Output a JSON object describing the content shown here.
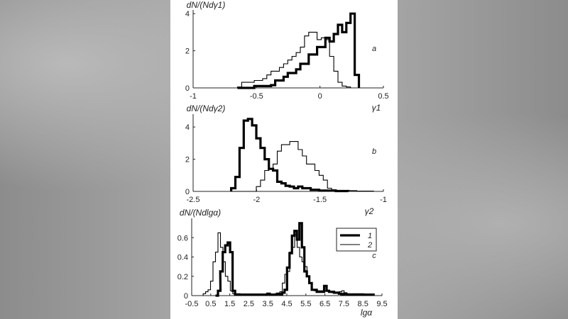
{
  "chart_data": [
    {
      "type": "histogram",
      "panel_label": "a",
      "ylabel": "dN/(Ndγ1)",
      "xlabel": "γ1",
      "xlim": [
        -1,
        0.5
      ],
      "ylim": [
        0,
        4.2
      ],
      "x_ticks": [
        "-1",
        "-0.5",
        "0",
        "0.5"
      ],
      "y_ticks": [
        "0",
        "2",
        "4"
      ],
      "bin_width": 0.033,
      "bin_start": -0.65,
      "series": [
        {
          "style": "thin",
          "values": [
            0.05,
            0.3,
            0.3,
            0.3,
            0.4,
            0.4,
            0.5,
            0.7,
            0.9,
            0.9,
            1.1,
            1.3,
            1.5,
            1.7,
            1.9,
            2.2,
            2.8,
            3.0,
            3.0,
            2.6,
            2.7,
            2.6,
            1.7,
            0.9,
            0.3,
            0.1,
            0.05
          ]
        },
        {
          "style": "thick",
          "values": [
            0,
            0,
            0,
            0,
            0.1,
            0.1,
            0.1,
            0.1,
            0.15,
            0.4,
            0.4,
            0.6,
            0.8,
            0.8,
            1.0,
            1.3,
            1.3,
            1.8,
            1.8,
            2.2,
            2.2,
            2.7,
            2.5,
            2.9,
            3.4,
            3.0,
            3.5,
            4.0,
            0.7
          ]
        }
      ]
    },
    {
      "type": "histogram",
      "panel_label": "b",
      "ylabel": "dN/(Ndγ2)",
      "xlabel": "γ2",
      "xlim": [
        -2.5,
        -1
      ],
      "ylim": [
        0,
        4.8
      ],
      "x_ticks": [
        "-2.5",
        "-2",
        "-1.5",
        "-1"
      ],
      "y_ticks": [
        "0",
        "2",
        "4"
      ],
      "bin_width": 0.033,
      "bin_start": -2.2,
      "series": [
        {
          "style": "thick",
          "values": [
            0.2,
            0.9,
            2.7,
            4.4,
            4.5,
            4.1,
            3.3,
            2.7,
            2.0,
            1.4,
            1.3,
            0.6,
            0.5,
            0.35,
            0.3,
            0.2,
            0.3,
            0.2,
            0.2,
            0.1,
            0.1,
            0.05,
            0.05,
            0.05,
            0.05,
            0.02,
            0.02,
            0.02
          ]
        },
        {
          "style": "thin",
          "values": [
            0,
            0,
            0,
            0,
            0,
            0,
            0.3,
            0.7,
            1.3,
            1.4,
            1.7,
            2.5,
            2.9,
            2.9,
            3.1,
            3.1,
            2.6,
            2.2,
            1.7,
            1.7,
            1.3,
            1.0,
            0.7,
            0.2,
            0.1,
            0.05,
            0.05,
            0.05,
            0.05,
            0.05,
            0.02,
            0.02,
            0.02,
            0.02
          ]
        }
      ]
    },
    {
      "type": "histogram",
      "panel_label": "c",
      "ylabel": "dN/(Ndlgα)",
      "xlabel": "lgα",
      "xlim": [
        -0.5,
        9.5
      ],
      "ylim": [
        0,
        0.8
      ],
      "x_ticks": [
        "-0.5",
        "0.5",
        "1.5",
        "2.5",
        "3.5",
        "4.5",
        "5.5",
        "6.5",
        "7.5",
        "8.5",
        "9.5"
      ],
      "y_ticks": [
        "0",
        "0.2",
        "0.4",
        "0.6"
      ],
      "legend": [
        "1",
        "2"
      ],
      "legend_position": "top-right",
      "series": [
        {
          "name": "1",
          "style": "thick",
          "bins": [
            [
              0.75,
              0
            ],
            [
              0.88,
              0.05
            ],
            [
              1.0,
              0.25
            ],
            [
              1.13,
              0.45
            ],
            [
              1.26,
              0.52
            ],
            [
              1.39,
              0.55
            ],
            [
              1.52,
              0.45
            ],
            [
              1.65,
              0.05
            ],
            [
              1.78,
              0.01
            ],
            [
              1.91,
              0.01
            ],
            [
              2.04,
              0.01
            ],
            [
              2.17,
              0.01
            ],
            [
              2.3,
              0.01
            ],
            [
              2.43,
              0.01
            ],
            [
              2.56,
              0.01
            ],
            [
              2.69,
              0.01
            ],
            [
              2.82,
              0.01
            ],
            [
              2.95,
              0.01
            ],
            [
              3.08,
              0.01
            ],
            [
              3.21,
              0.01
            ],
            [
              3.34,
              0.01
            ],
            [
              3.47,
              0.02
            ],
            [
              3.6,
              0.01
            ],
            [
              3.73,
              0.01
            ],
            [
              3.86,
              0.01
            ],
            [
              3.99,
              0.02
            ],
            [
              4.12,
              0.01
            ],
            [
              4.25,
              0.03
            ],
            [
              4.38,
              0.06
            ],
            [
              4.51,
              0.29
            ],
            [
              4.64,
              0.44
            ],
            [
              4.77,
              0.62
            ],
            [
              4.9,
              0.67
            ],
            [
              5.03,
              0.58
            ],
            [
              5.16,
              0.75
            ],
            [
              5.29,
              0.5
            ],
            [
              5.42,
              0.25
            ],
            [
              5.55,
              0.2
            ],
            [
              5.68,
              0.13
            ],
            [
              5.81,
              0.06
            ],
            [
              5.94,
              0.06
            ],
            [
              6.07,
              0.04
            ],
            [
              6.2,
              0.04
            ],
            [
              6.33,
              0.04
            ],
            [
              6.46,
              0.1
            ],
            [
              6.59,
              0.05
            ],
            [
              6.72,
              0.04
            ],
            [
              6.85,
              0.04
            ],
            [
              6.98,
              0.03
            ],
            [
              7.11,
              0.03
            ],
            [
              7.24,
              0.02
            ],
            [
              7.37,
              0.01
            ],
            [
              7.5,
              0.02
            ],
            [
              7.63,
              0.01
            ],
            [
              7.76,
              0.01
            ],
            [
              7.89,
              0.01
            ],
            [
              8.02,
              0.01
            ],
            [
              8.15,
              0.01
            ],
            [
              8.28,
              0.01
            ],
            [
              8.41,
              0.01
            ],
            [
              8.54,
              0.01
            ],
            [
              8.67,
              0.01
            ],
            [
              8.8,
              0.01
            ],
            [
              8.93,
              0.01
            ]
          ]
        },
        {
          "name": "2",
          "style": "thin",
          "bins": [
            [
              0.1,
              0.02
            ],
            [
              0.23,
              0.04
            ],
            [
              0.36,
              0.06
            ],
            [
              0.49,
              0.15
            ],
            [
              0.62,
              0.35
            ],
            [
              0.75,
              0.45
            ],
            [
              0.88,
              0.65
            ],
            [
              1.01,
              0.5
            ],
            [
              1.14,
              0.35
            ],
            [
              1.27,
              0.2
            ],
            [
              1.4,
              0.15
            ],
            [
              1.53,
              0.05
            ],
            [
              1.66,
              0.02
            ],
            [
              1.79,
              0.02
            ],
            [
              1.92,
              0.02
            ],
            [
              2.05,
              0.01
            ],
            [
              2.18,
              0.01
            ],
            [
              2.31,
              0.01
            ],
            [
              2.44,
              0.01
            ],
            [
              2.57,
              0.01
            ],
            [
              2.7,
              0.01
            ],
            [
              2.83,
              0.01
            ],
            [
              2.96,
              0.01
            ],
            [
              3.09,
              0.01
            ],
            [
              3.22,
              0.01
            ],
            [
              3.35,
              0.01
            ],
            [
              3.48,
              0.01
            ],
            [
              3.61,
              0.01
            ],
            [
              3.74,
              0.01
            ],
            [
              3.87,
              0.02
            ],
            [
              4.0,
              0.02
            ],
            [
              4.13,
              0.04
            ],
            [
              4.26,
              0.13
            ],
            [
              4.39,
              0.22
            ],
            [
              4.52,
              0.25
            ],
            [
              4.65,
              0.45
            ],
            [
              4.78,
              0.5
            ],
            [
              4.91,
              0.63
            ],
            [
              5.04,
              0.5
            ],
            [
              5.17,
              0.4
            ],
            [
              5.3,
              0.35
            ],
            [
              5.43,
              0.3
            ],
            [
              5.56,
              0.2
            ],
            [
              5.69,
              0.13
            ],
            [
              5.82,
              0.06
            ],
            [
              5.95,
              0.05
            ],
            [
              6.08,
              0.05
            ],
            [
              6.21,
              0.05
            ],
            [
              6.34,
              0.05
            ],
            [
              6.47,
              0.05
            ],
            [
              6.6,
              0.05
            ],
            [
              6.73,
              0.04
            ],
            [
              6.86,
              0.03
            ],
            [
              6.99,
              0.03
            ],
            [
              7.12,
              0.03
            ],
            [
              7.25,
              0.04
            ],
            [
              7.38,
              0.05
            ],
            [
              7.51,
              0.03
            ],
            [
              7.64,
              0.02
            ],
            [
              7.77,
              0.02
            ],
            [
              7.9,
              0.02
            ],
            [
              8.03,
              0.02
            ],
            [
              8.16,
              0.02
            ],
            [
              8.29,
              0.02
            ],
            [
              8.42,
              0.02
            ],
            [
              8.55,
              0.01
            ],
            [
              8.68,
              0.01
            ],
            [
              8.81,
              0.01
            ],
            [
              8.94,
              0.01
            ]
          ]
        }
      ]
    }
  ]
}
